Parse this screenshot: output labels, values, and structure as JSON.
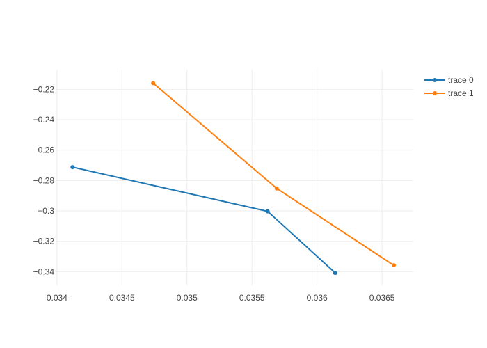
{
  "chart_data": {
    "type": "line",
    "title": "",
    "xlabel": "",
    "ylabel": "",
    "xlim": [
      0.03399,
      0.03674
    ],
    "ylim": [
      -0.349,
      -0.207
    ],
    "grid": true,
    "legend_position": "top-right",
    "x_ticks": [
      {
        "value": 0.034,
        "label": "0.034"
      },
      {
        "value": 0.0345,
        "label": "0.0345"
      },
      {
        "value": 0.035,
        "label": "0.035"
      },
      {
        "value": 0.0355,
        "label": "0.0355"
      },
      {
        "value": 0.036,
        "label": "0.036"
      },
      {
        "value": 0.0365,
        "label": "0.0365"
      }
    ],
    "y_ticks": [
      {
        "value": -0.22,
        "label": "−0.22"
      },
      {
        "value": -0.24,
        "label": "−0.24"
      },
      {
        "value": -0.26,
        "label": "−0.26"
      },
      {
        "value": -0.28,
        "label": "−0.28"
      },
      {
        "value": -0.3,
        "label": "−0.3"
      },
      {
        "value": -0.32,
        "label": "−0.32"
      },
      {
        "value": -0.34,
        "label": "−0.34"
      }
    ],
    "series": [
      {
        "name": "trace 0",
        "color": "#1f77b4",
        "x": [
          0.03412,
          0.03562,
          0.03614
        ],
        "y": [
          -0.2712,
          -0.3003,
          -0.3408
        ]
      },
      {
        "name": "trace 1",
        "color": "#ff7f0e",
        "x": [
          0.03474,
          0.03569,
          0.03659
        ],
        "y": [
          -0.2159,
          -0.2852,
          -0.3358
        ]
      }
    ]
  }
}
